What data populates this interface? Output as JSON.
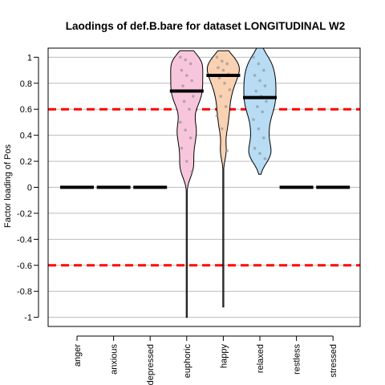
{
  "chart_data": {
    "type": "violin",
    "title": "Laodings of def.B.bare for dataset LONGITUDINAL W2",
    "xlabel": "",
    "ylabel": "Factor loading of Pos",
    "ylim": [
      -1.07,
      1.07
    ],
    "yticks": [
      "-1",
      "-0.8",
      "-0.6",
      "-0.4",
      "-0.2",
      "0",
      "0.2",
      "0.4",
      "0.6",
      "0.8",
      "1"
    ],
    "ytick_values": [
      -1,
      -0.8,
      -0.6,
      -0.4,
      -0.2,
      0,
      0.2,
      0.4,
      0.6,
      0.8,
      1
    ],
    "grid": true,
    "reference_lines": [
      {
        "y": 0.6,
        "color": "#ff0000",
        "style": "dashed"
      },
      {
        "y": -0.6,
        "color": "#ff0000",
        "style": "dashed"
      }
    ],
    "categories": [
      "anger",
      "anxious",
      "depressed",
      "euphoric",
      "happy",
      "relaxed",
      "restless",
      "stressed"
    ],
    "series": [
      {
        "category": "anger",
        "mean": 0.0
      },
      {
        "category": "anxious",
        "mean": 0.0
      },
      {
        "category": "depressed",
        "mean": 0.0
      },
      {
        "category": "euphoric",
        "mean": 0.74,
        "color": "#f7c6dd",
        "range": [
          -1.0,
          1.05
        ],
        "points": [
          1.0,
          0.98,
          0.95,
          0.9,
          0.86,
          0.82,
          0.78,
          0.74,
          0.7,
          0.66,
          0.6,
          0.5,
          0.44,
          0.38,
          0.3,
          0.2,
          0.12
        ]
      },
      {
        "category": "happy",
        "mean": 0.86,
        "color": "#f9d1b3",
        "range": [
          -0.92,
          1.05
        ],
        "points": [
          1.0,
          0.97,
          0.95,
          0.92,
          0.9,
          0.87,
          0.84,
          0.8,
          0.75,
          0.7,
          0.62,
          0.55,
          0.45,
          0.28
        ]
      },
      {
        "category": "relaxed",
        "mean": 0.69,
        "color": "#b7dcf4",
        "range": [
          0.1,
          1.07
        ],
        "points": [
          1.0,
          0.95,
          0.9,
          0.86,
          0.82,
          0.78,
          0.74,
          0.7,
          0.66,
          0.62,
          0.58,
          0.52,
          0.45,
          0.38,
          0.3,
          0.26,
          0.22
        ]
      },
      {
        "category": "restless",
        "mean": 0.0
      },
      {
        "category": "stressed",
        "mean": 0.0
      }
    ]
  }
}
